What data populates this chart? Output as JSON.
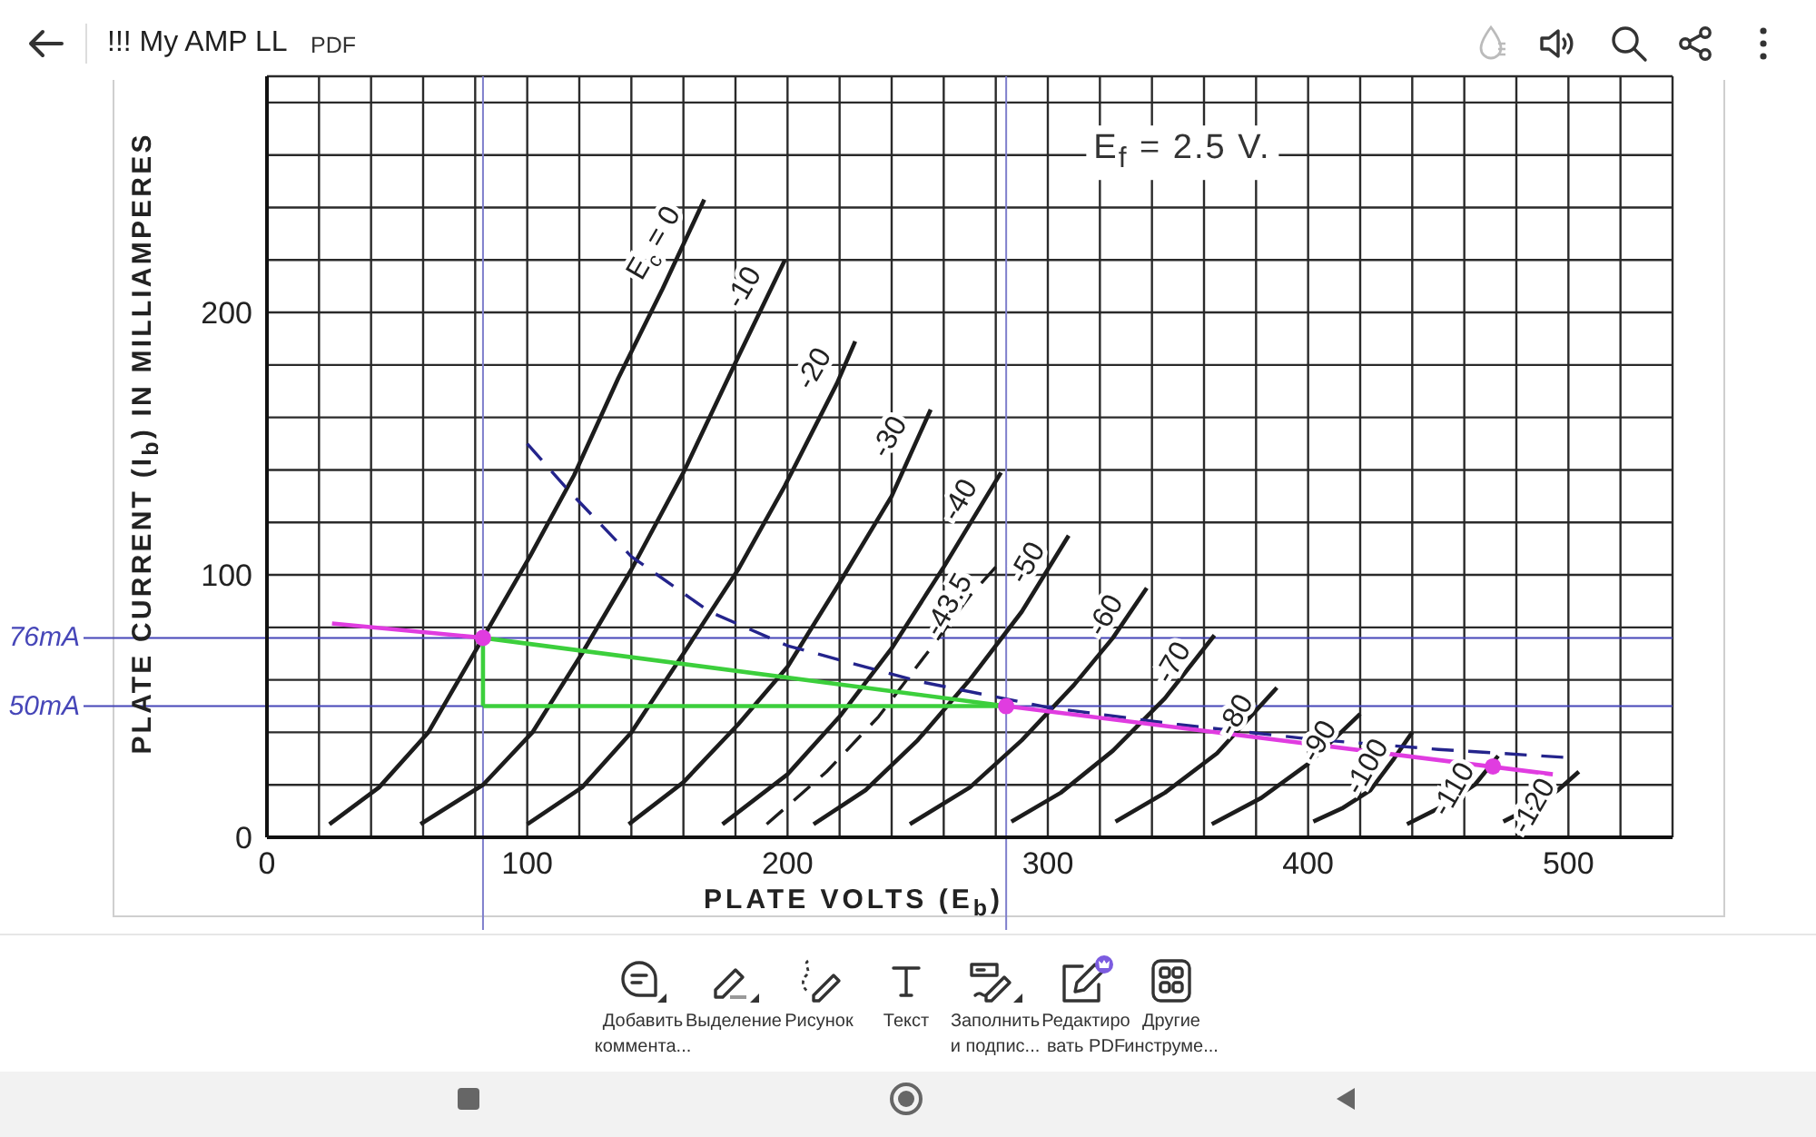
{
  "chart_data": {
    "type": "line",
    "xlabel": "PLATE VOLTS (E$_{b}$)",
    "ylabel": "PLATE CURRENT (I$_{b}$) IN MILLIAMPERES",
    "annotations": [
      "E$_{f}$ = 2.5 V.",
      "!!! My AMP LL",
      "PDF",
      "Добавить\nкоммента...",
      "Выделение",
      "Рисунок",
      "Текст",
      "Заполнить\nи подпис...",
      "Редактиро\nвать PDF",
      "Другие\nинструме..."
    ],
    "xlim": [
      0,
      540
    ],
    "ylim": [
      0,
      290
    ],
    "xticks": [
      0,
      {
        "value": 20,
        "label": null
      },
      {
        "value": 40,
        "label": null
      },
      {
        "value": 60,
        "label": null
      },
      {
        "value": 80,
        "label": null
      },
      100,
      {
        "value": 120,
        "label": null
      },
      {
        "value": 140,
        "label": null
      },
      {
        "value": 160,
        "label": null
      },
      {
        "value": 180,
        "label": null
      },
      200,
      {
        "value": 220,
        "label": null
      },
      {
        "value": 240,
        "label": null
      },
      {
        "value": 260,
        "label": null
      },
      {
        "value": 280,
        "label": null
      },
      300,
      {
        "value": 320,
        "label": null
      },
      {
        "value": 340,
        "label": null
      },
      {
        "value": 360,
        "label": null
      },
      {
        "value": 380,
        "label": null
      },
      400,
      {
        "value": 420,
        "label": null
      },
      {
        "value": 440,
        "label": null
      },
      {
        "value": 460,
        "label": null
      },
      {
        "value": 480,
        "label": null
      },
      500,
      {
        "value": 520,
        "label": null
      },
      {
        "value": 540,
        "label": null
      }
    ],
    "yticks": [
      0,
      {
        "value": 20,
        "label": null
      },
      {
        "value": 40,
        "label": null
      },
      {
        "value": 60,
        "label": null
      },
      {
        "value": 80,
        "label": null
      },
      100,
      {
        "value": 120,
        "label": null
      },
      {
        "value": 140,
        "label": null
      },
      {
        "value": 160,
        "label": null
      },
      {
        "value": 180,
        "label": null
      },
      200,
      {
        "value": 220,
        "label": null
      },
      {
        "value": 240,
        "label": null
      },
      {
        "value": 260,
        "label": null
      },
      {
        "value": 280,
        "label": null
      }
    ],
    "grid": true,
    "marker": "none",
    "line_style": "solid",
    "ref_lines": [
      {
        "axis": "x",
        "value": 83,
        "color": "#7f7fcc"
      },
      {
        "axis": "x",
        "value": 284,
        "color": "#7f7fcc"
      },
      {
        "axis": "y",
        "value": 76,
        "label": "76mA",
        "color": "#4646b8"
      },
      {
        "axis": "y",
        "value": 50,
        "label": "50mA",
        "color": "#4646b8"
      }
    ],
    "series": [
      {
        "name": "E$_{c}$ = 0",
        "color": "#1c1c1c",
        "x": [
          24,
          43,
          62,
          83,
          101,
          118,
          135,
          152,
          168
        ],
        "values": [
          5,
          19,
          40,
          76,
          107,
          138,
          175,
          209,
          243
        ]
      },
      {
        "name": "-10",
        "color": "#1c1c1c",
        "x": [
          59,
          83,
          102,
          121,
          140,
          160,
          181,
          199
        ],
        "values": [
          5,
          20,
          40,
          70,
          102,
          139,
          183,
          220
        ]
      },
      {
        "name": "-20",
        "color": "#1c1c1c",
        "x": [
          100,
          121,
          140,
          160,
          181,
          199,
          219,
          226
        ],
        "values": [
          5,
          19,
          40,
          70,
          102,
          134,
          173,
          189
        ]
      },
      {
        "name": "-30",
        "color": "#1c1c1c",
        "x": [
          139,
          160,
          181,
          200,
          220,
          240,
          255
        ],
        "values": [
          5,
          21,
          43,
          65,
          97,
          130,
          163
        ]
      },
      {
        "name": "-40",
        "color": "#1c1c1c",
        "x": [
          175,
          200,
          220,
          240,
          260,
          282
        ],
        "values": [
          5,
          24,
          46,
          72,
          103,
          139
        ]
      },
      {
        "name": "-43.5",
        "color": "#1c1c1c",
        "line_style": "dashed",
        "x": [
          192,
          215,
          235,
          255,
          270,
          280
        ],
        "values": [
          5,
          25,
          46,
          72,
          92,
          103
        ]
      },
      {
        "name": "-50",
        "color": "#1c1c1c",
        "x": [
          210,
          230,
          250,
          270,
          290,
          308
        ],
        "values": [
          5,
          18,
          37,
          60,
          86,
          115
        ]
      },
      {
        "name": "-60",
        "color": "#1c1c1c",
        "x": [
          247,
          270,
          290,
          310,
          325,
          338
        ],
        "values": [
          5,
          19,
          37,
          58,
          76,
          95
        ]
      },
      {
        "name": "-70",
        "color": "#1c1c1c",
        "x": [
          286,
          305,
          325,
          345,
          364
        ],
        "values": [
          6,
          17,
          33,
          53,
          77
        ]
      },
      {
        "name": "-80",
        "color": "#1c1c1c",
        "x": [
          326,
          345,
          365,
          388
        ],
        "values": [
          6,
          17,
          32,
          57
        ]
      },
      {
        "name": "-90",
        "color": "#1c1c1c",
        "x": [
          363,
          382,
          400,
          420
        ],
        "values": [
          5,
          15,
          28,
          47
        ]
      },
      {
        "name": "-100",
        "color": "#1c1c1c",
        "x": [
          402,
          413,
          424,
          433,
          440
        ],
        "values": [
          6,
          11,
          18,
          30,
          40
        ]
      },
      {
        "name": "-110",
        "color": "#1c1c1c",
        "x": [
          438,
          452,
          464,
          473
        ],
        "values": [
          5,
          12,
          20,
          31
        ]
      },
      {
        "name": "-120",
        "color": "#1c1c1c",
        "x": [
          475,
          487,
          496,
          504
        ],
        "values": [
          6,
          12,
          18,
          25
        ]
      },
      {
        "color": "#24248c",
        "line_style": "dashed",
        "x": [
          100,
          116,
          140,
          170,
          200,
          250,
          300,
          350,
          400,
          450,
          498
        ],
        "values": [
          150,
          132,
          107,
          86,
          73,
          59.5,
          49.5,
          43,
          37.5,
          33.5,
          30.5
        ]
      },
      {
        "color": "#3ccf3c",
        "x": [
          83,
          83,
          284
        ],
        "values": [
          50,
          76,
          50
        ]
      },
      {
        "color": "#3ccf3c",
        "x": [
          83,
          284
        ],
        "values": [
          50,
          50
        ]
      },
      {
        "color": "#e03ce0",
        "x": [
          25,
          83
        ],
        "values": [
          81.5,
          76
        ]
      },
      {
        "color": "#e03ce0",
        "x": [
          284,
          494
        ],
        "values": [
          50,
          24
        ]
      },
      {
        "type": "scatter",
        "color": "#e03ce0",
        "marker": "circle",
        "x": [
          83,
          284,
          471
        ],
        "values": [
          76,
          50,
          27
        ]
      }
    ]
  }
}
